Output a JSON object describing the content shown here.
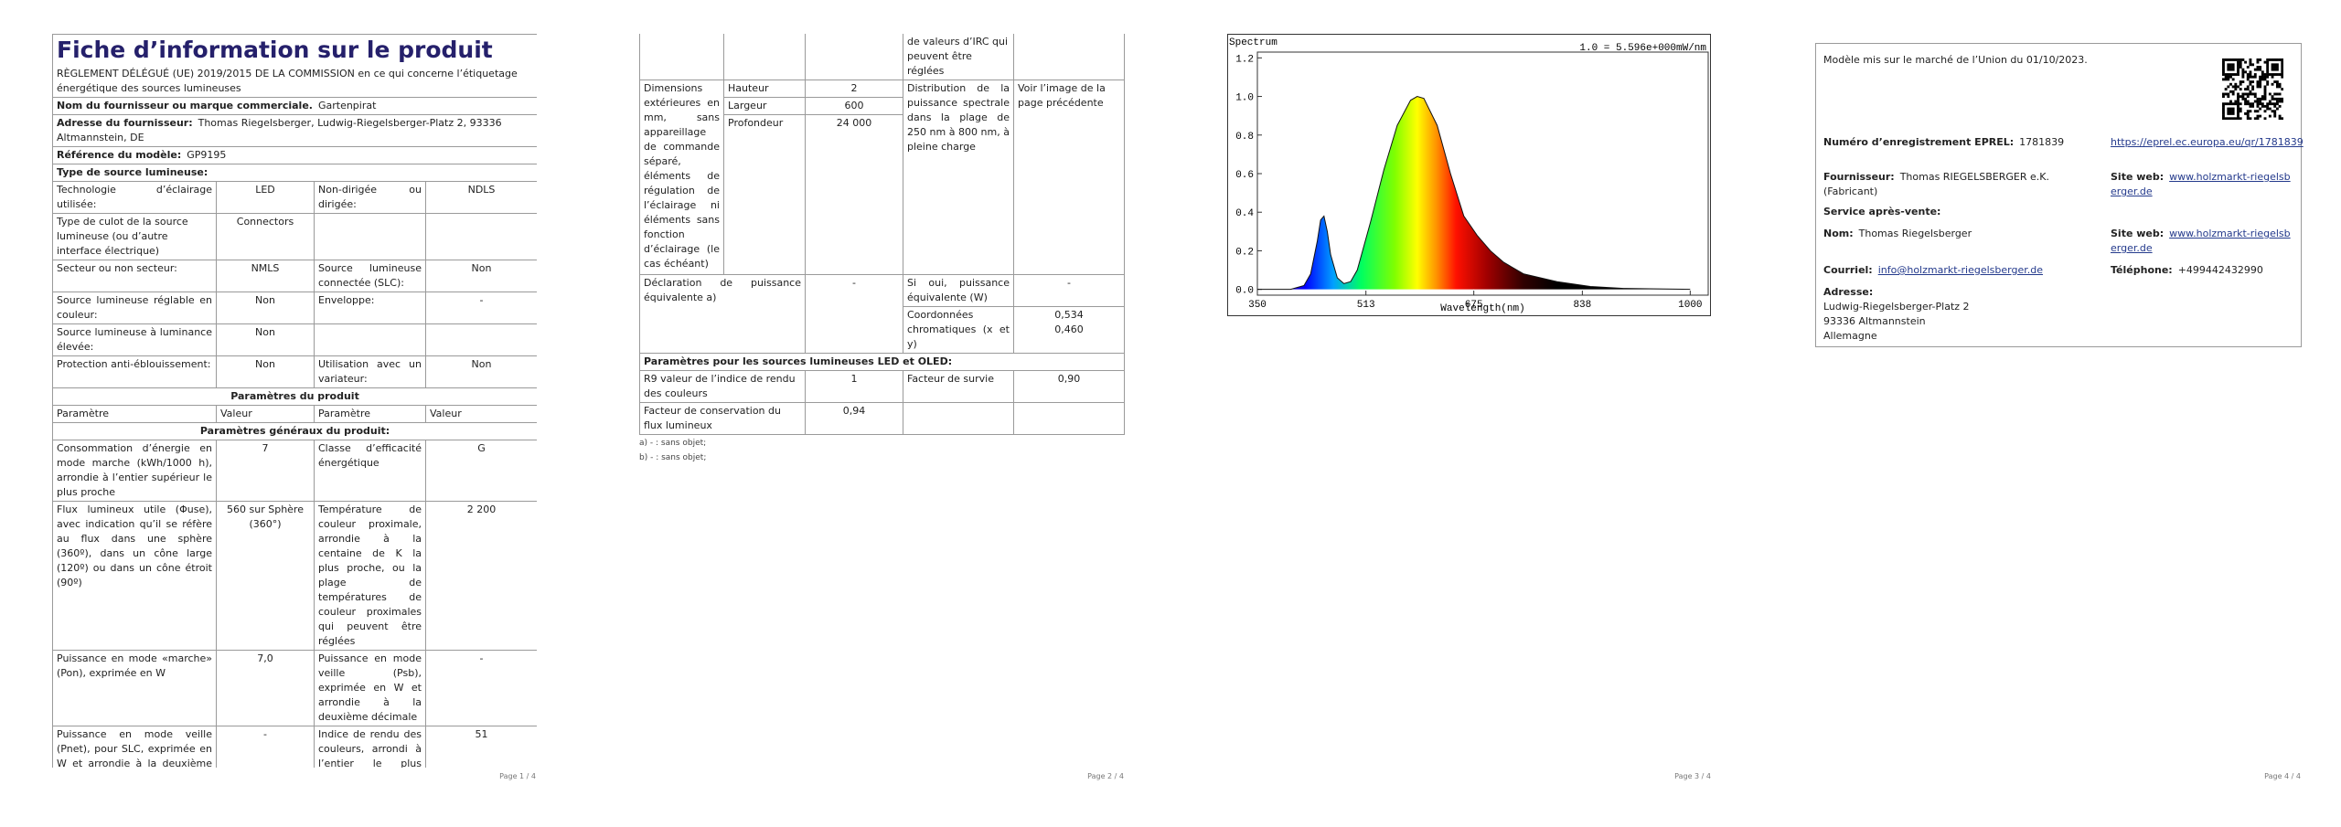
{
  "page1": {
    "title": "Fiche d’information sur le produit",
    "regulation": "RÈGLEMENT DÉLÉGUÉ (UE) 2019/2015 DE LA COMMISSION en ce qui concerne l’étiquetage énergétique des sources lumineuses",
    "supplier_name": {
      "label": "Nom du fournisseur ou marque commerciale.",
      "value": "Gartenpirat"
    },
    "supplier_address": {
      "label": "Adresse du fournisseur:",
      "value": "Thomas Riegelsberger, Ludwig-Riegelsberger-Platz 2, 93336 Altmannstein, DE"
    },
    "model": {
      "label": "Référence du modèle:",
      "value": "GP9195"
    },
    "source_type": "Type de source lumineuse:",
    "type_rows": [
      [
        "Technologie d’éclairage utilisée:",
        "LED",
        "Non-dirigée ou dirigée:",
        "NDLS"
      ],
      [
        "Type de culot de la source lumineuse (ou d’autre interface électrique)",
        "Connectors"
      ],
      [
        "Secteur ou non secteur:",
        "NMLS",
        "Source lumineuse connectée (SLC):",
        "Non"
      ],
      [
        "Source lumineuse réglable en couleur:",
        "Non",
        "Enveloppe:",
        "-"
      ],
      [
        "Source lumineuse à luminance élevée:",
        "Non"
      ],
      [
        "Protection anti-éblouissement:",
        "Non",
        "Utilisation avec un variateur:",
        "Non"
      ]
    ],
    "params_title": "Paramètres du produit",
    "params_header": [
      "Paramètre",
      "Valeur",
      "Paramètre",
      "Valeur"
    ],
    "general_title": "Paramètres généraux du produit:",
    "general_rows": [
      [
        "Consommation d’énergie en mode marche (kWh/1000 h), arrondie à l’entier supérieur le plus proche",
        "7",
        "Classe d’efficacité énergétique",
        "G"
      ],
      [
        "Flux lumineux utile (Φuse), avec indication qu’il se réfère au flux dans une sphère (360º), dans un cône large (120º) ou dans un cône étroit (90º)",
        "560 sur Sphère (360°)",
        "Température de couleur proximale, arrondie à la centaine de K la plus proche, ou la plage de températures de couleur proximales qui peuvent être réglées",
        "2 200"
      ],
      [
        "Puissance en mode «marche» (Pon), exprimée en W",
        "7,0",
        "Puissance en mode veille (Psb), exprimée en W et arrondie à la deuxième décimale",
        "-"
      ],
      [
        "Puissance en mode veille (Pnet), pour SLC, exprimée en W et arrondie à la deuxième décimale",
        "-",
        "Indice de rendu des couleurs, arrondi à l’entier le plus proche, ou la plage",
        "51"
      ]
    ],
    "footer": "Page 1 / 4"
  },
  "page2": {
    "irc_continuation": "de valeurs d’IRC qui peuvent être réglées",
    "dimensions": {
      "label": "Dimensions extérieures en mm, sans appareillage de commande séparé, éléments de régulation de l’éclairage ni éléments sans fonction d’éclairage (le cas échéant)",
      "rows": [
        [
          "Hauteur",
          "2"
        ],
        [
          "Largeur",
          "600"
        ],
        [
          "Profondeur",
          "24 000"
        ]
      ]
    },
    "spectral": {
      "label": "Distribution de la puissance spectrale dans la plage de 250 nm à 800 nm, à pleine charge",
      "value": "Voir l’image de la page précédente"
    },
    "equivalent": {
      "label": "Déclaration de puissance équivalente a)",
      "value": "-"
    },
    "equivalent_power": {
      "label": "Si oui, puissance équivalente (W)",
      "value": "-"
    },
    "chromaticity": {
      "label": "Coordonnées chromatiques (x et y)",
      "values": [
        "0,534",
        "0,460"
      ]
    },
    "led_title": "Paramètres pour les sources lumineuses LED et OLED:",
    "led_rows": [
      [
        "R9 valeur de l’indice de rendu des couleurs",
        "1",
        "Facteur de survie",
        "0,90"
      ],
      [
        "Facteur de conservation du flux lumineux",
        "0,94"
      ]
    ],
    "footnotes": [
      "a) - : sans objet;",
      "b) - : sans objet;"
    ],
    "footer": "Page 2 / 4"
  },
  "chart_data": {
    "type": "area",
    "title": "Spectrum",
    "annotation": "1.0 = 5.596e+000mW/nm",
    "x_label": "Wavelength(nm)",
    "x": [
      350,
      400,
      420,
      430,
      440,
      445,
      450,
      455,
      460,
      470,
      480,
      490,
      500,
      520,
      540,
      560,
      580,
      590,
      600,
      620,
      640,
      660,
      680,
      700,
      720,
      750,
      800,
      850,
      900,
      1000
    ],
    "values": [
      0,
      0,
      0.02,
      0.08,
      0.25,
      0.36,
      0.38,
      0.3,
      0.18,
      0.06,
      0.03,
      0.04,
      0.1,
      0.35,
      0.62,
      0.85,
      0.98,
      1.0,
      0.99,
      0.85,
      0.6,
      0.38,
      0.28,
      0.2,
      0.14,
      0.08,
      0.04,
      0.015,
      0.005,
      0
    ],
    "xlim": [
      350,
      1027
    ],
    "ylim": [
      -0.03,
      1.23
    ],
    "xticks": [
      350,
      513,
      675,
      838,
      1000
    ],
    "yticks": [
      {
        "value": 0,
        "label": "0.0"
      },
      {
        "value": 0.2,
        "label": "0.2"
      },
      {
        "value": 0.4,
        "label": "0.4"
      },
      {
        "value": 0.6,
        "label": "0.6"
      },
      {
        "value": 0.8,
        "label": "0.8"
      },
      {
        "value": 1,
        "label": "1.0"
      },
      {
        "value": 1.2,
        "label": "1.2"
      }
    ]
  },
  "page3": {
    "footer": "Page 3 / 4"
  },
  "page4": {
    "market_date": "Modèle mis sur le marché de l’Union du 01/10/2023.",
    "eprel": {
      "label": "Numéro d’enregistrement EPREL:",
      "value": "1781839",
      "link": "https://eprel.ec.europa.eu/qr/1781839"
    },
    "supplier": {
      "label": "Fournisseur:",
      "value": "Thomas RIEGELSBERGER e.K. (Fabricant)"
    },
    "supplier_site": {
      "label": "Site web:",
      "value": "www.holzmarkt-riegelsberger.de"
    },
    "service_title": "Service après-vente:",
    "service_name": {
      "label": "Nom:",
      "value": "Thomas Riegelsberger"
    },
    "service_site": {
      "label": "Site web:",
      "value": "www.holzmarkt-riegelsberger.de"
    },
    "email": {
      "label": "Courriel:",
      "value": "info@holzmarkt-riegelsberger.de"
    },
    "phone": {
      "label": "Téléphone:",
      "value": "+499442432990"
    },
    "address": {
      "label": "Adresse:",
      "lines": [
        "Ludwig-Riegelsberger-Platz 2",
        "93336 Altmannstein",
        "Allemagne"
      ]
    },
    "footer": "Page 4 / 4"
  }
}
